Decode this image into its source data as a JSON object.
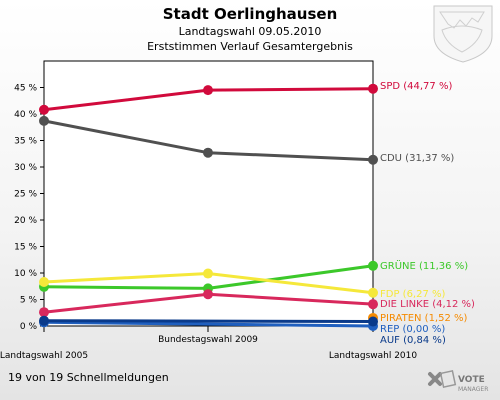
{
  "header": {
    "title": "Stadt Oerlinghausen",
    "subtitle1": "Landtagswahl 09.05.2010",
    "subtitle2": "Erststimmen Verlauf Gesamtergebnis"
  },
  "footer": {
    "note": "19 von 19 Schnellmeldungen",
    "logo": {
      "main": "VOTE",
      "sub": "MANAGER"
    }
  },
  "chart_data": {
    "type": "line",
    "title": "Stadt Oerlinghausen",
    "categories": [
      "Landtagswahl 2005",
      "Bundestagswahl 2009",
      "Landtagswahl 2010"
    ],
    "yticks": [
      "0 %",
      "5 %",
      "10 %",
      "15 %",
      "20 %",
      "25 %",
      "30 %",
      "35 %",
      "40 %",
      "45 %"
    ],
    "ylim": [
      0,
      50
    ],
    "grid": false,
    "series": [
      {
        "name": "SPD",
        "label": "SPD (44,77 %)",
        "color": "#d10a3c",
        "values": [
          40.8,
          44.5,
          44.77
        ]
      },
      {
        "name": "CDU",
        "label": "CDU (31,37 %)",
        "color": "#505050",
        "values": [
          38.7,
          32.7,
          31.37
        ]
      },
      {
        "name": "GRÜNE",
        "label": "GRÜNE (11,36 %)",
        "color": "#3cc82a",
        "values": [
          7.4,
          7.1,
          11.36
        ]
      },
      {
        "name": "FDP",
        "label": "FDP (6,27 %)",
        "color": "#f5e83a",
        "values": [
          8.3,
          9.9,
          6.27
        ]
      },
      {
        "name": "DIE LINKE",
        "label": "DIE LINKE (4,12 %)",
        "color": "#d8285c",
        "values": [
          2.6,
          6.0,
          4.12
        ]
      },
      {
        "name": "PIRATEN",
        "label": "PIRATEN (1,52 %)",
        "color": "#f58a00",
        "values": [
          null,
          null,
          1.52
        ]
      },
      {
        "name": "REP",
        "label": "REP (0,00 %)",
        "color": "#1f5fbf",
        "values": [
          0.7,
          null,
          0.0
        ]
      },
      {
        "name": "AUF",
        "label": "AUF (0,84 %)",
        "color": "#0a3a8a",
        "values": [
          1.0,
          null,
          0.84
        ]
      }
    ]
  }
}
